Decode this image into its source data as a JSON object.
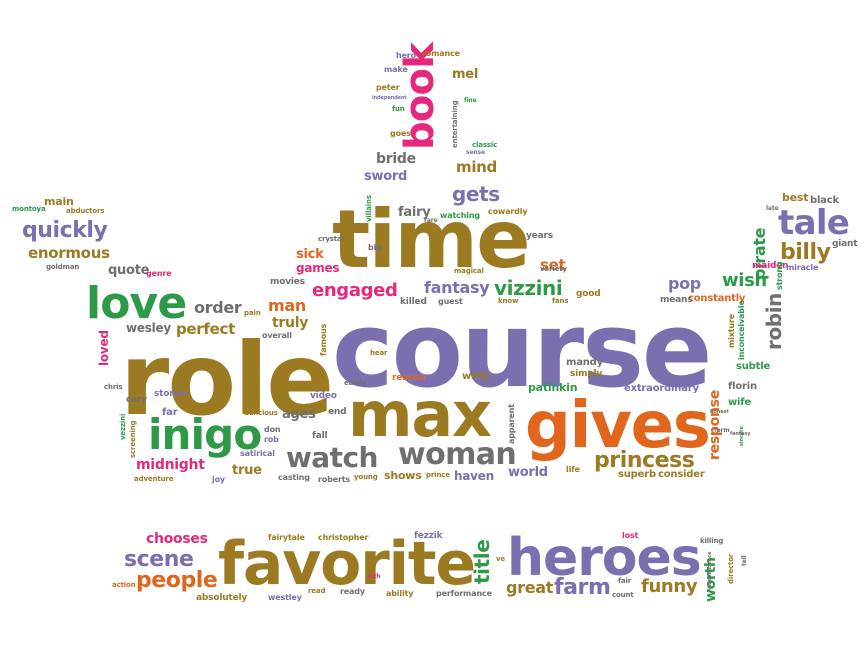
{
  "colors": {
    "green": "#2e9a48",
    "orange": "#e0661e",
    "purple": "#7b6fb0",
    "brown": "#9b7a22",
    "pink": "#e5287b",
    "gray": "#6f6f6f"
  },
  "words": [
    {
      "text": "course",
      "color": "purple"
    },
    {
      "text": "role",
      "color": "brown"
    },
    {
      "text": "time",
      "color": "brown"
    },
    {
      "text": "max",
      "color": "brown"
    },
    {
      "text": "gives",
      "color": "orange"
    },
    {
      "text": "favorite",
      "color": "brown"
    },
    {
      "text": "heroes",
      "color": "purple"
    },
    {
      "text": "book",
      "color": "pink"
    },
    {
      "text": "love",
      "color": "green"
    },
    {
      "text": "inigo",
      "color": "green"
    },
    {
      "text": "watch",
      "color": "gray"
    },
    {
      "text": "woman",
      "color": "gray"
    },
    {
      "text": "tale",
      "color": "purple"
    },
    {
      "text": "princess",
      "color": "brown"
    },
    {
      "text": "scene",
      "color": "purple"
    },
    {
      "text": "people",
      "color": "orange"
    },
    {
      "text": "farm",
      "color": "purple"
    },
    {
      "text": "great",
      "color": "brown"
    },
    {
      "text": "funny",
      "color": "brown"
    },
    {
      "text": "title",
      "color": "green"
    },
    {
      "text": "quickly",
      "color": "purple"
    },
    {
      "text": "enormous",
      "color": "brown"
    },
    {
      "text": "engaged",
      "color": "pink"
    },
    {
      "text": "fantasy",
      "color": "purple"
    },
    {
      "text": "vizzini",
      "color": "green"
    },
    {
      "text": "gets",
      "color": "purple"
    },
    {
      "text": "billy",
      "color": "brown"
    },
    {
      "text": "robin",
      "color": "gray"
    },
    {
      "text": "pirate",
      "color": "green"
    },
    {
      "text": "wish",
      "color": "green"
    },
    {
      "text": "pop",
      "color": "purple"
    },
    {
      "text": "man",
      "color": "orange"
    },
    {
      "text": "truly",
      "color": "brown"
    },
    {
      "text": "perfect",
      "color": "brown"
    },
    {
      "text": "order",
      "color": "gray"
    },
    {
      "text": "midnight",
      "color": "pink"
    },
    {
      "text": "chooses",
      "color": "pink"
    },
    {
      "text": "worth",
      "color": "green"
    },
    {
      "text": "response",
      "color": "orange"
    },
    {
      "text": "mind",
      "color": "brown"
    },
    {
      "text": "set",
      "color": "orange"
    },
    {
      "text": "bride",
      "color": "gray"
    },
    {
      "text": "sword",
      "color": "purple"
    },
    {
      "text": "fairy",
      "color": "gray"
    },
    {
      "text": "mel",
      "color": "brown"
    },
    {
      "text": "sick",
      "color": "orange"
    },
    {
      "text": "games",
      "color": "pink"
    },
    {
      "text": "loved",
      "color": "pink"
    },
    {
      "text": "wesley",
      "color": "gray"
    },
    {
      "text": "quote",
      "color": "gray"
    },
    {
      "text": "main",
      "color": "brown"
    },
    {
      "text": "ages",
      "color": "gray"
    },
    {
      "text": "true",
      "color": "brown"
    },
    {
      "text": "world",
      "color": "purple"
    },
    {
      "text": "haven",
      "color": "purple"
    },
    {
      "text": "shows",
      "color": "brown"
    },
    {
      "text": "patinkin",
      "color": "green"
    },
    {
      "text": "witty",
      "color": "brown"
    },
    {
      "text": "mandy",
      "color": "gray"
    },
    {
      "text": "simply",
      "color": "brown"
    },
    {
      "text": "extraordinary",
      "color": "purple"
    },
    {
      "text": "subtle",
      "color": "green"
    },
    {
      "text": "wife",
      "color": "green"
    },
    {
      "text": "florin",
      "color": "gray"
    },
    {
      "text": "superb",
      "color": "brown"
    },
    {
      "text": "consider",
      "color": "brown"
    },
    {
      "text": "constantly",
      "color": "orange"
    },
    {
      "text": "means",
      "color": "gray"
    },
    {
      "text": "good",
      "color": "brown"
    },
    {
      "text": "best",
      "color": "brown"
    },
    {
      "text": "black",
      "color": "gray"
    },
    {
      "text": "giant",
      "color": "gray"
    },
    {
      "text": "maiden",
      "color": "pink"
    },
    {
      "text": "miracle",
      "color": "purple"
    },
    {
      "text": "strong",
      "color": "green"
    },
    {
      "text": "mixture",
      "color": "brown"
    },
    {
      "text": "inconceivable",
      "color": "green"
    },
    {
      "text": "years",
      "color": "gray"
    },
    {
      "text": "variety",
      "color": "gray"
    },
    {
      "text": "magical",
      "color": "brown"
    },
    {
      "text": "know",
      "color": "brown"
    },
    {
      "text": "fans",
      "color": "brown"
    },
    {
      "text": "guest",
      "color": "gray"
    },
    {
      "text": "killed",
      "color": "gray"
    },
    {
      "text": "movies",
      "color": "gray"
    },
    {
      "text": "pain",
      "color": "brown"
    },
    {
      "text": "overall",
      "color": "gray"
    },
    {
      "text": "video",
      "color": "purple"
    },
    {
      "text": "famous",
      "color": "brown"
    },
    {
      "text": "hear",
      "color": "brown"
    },
    {
      "text": "easily",
      "color": "gray"
    },
    {
      "text": "reason",
      "color": "orange"
    },
    {
      "text": "apparent",
      "color": "gray"
    },
    {
      "text": "life",
      "color": "brown"
    },
    {
      "text": "stories",
      "color": "purple"
    },
    {
      "text": "cary",
      "color": "gray"
    },
    {
      "text": "chris",
      "color": "gray"
    },
    {
      "text": "far",
      "color": "purple"
    },
    {
      "text": "delicious",
      "color": "brown"
    },
    {
      "text": "don",
      "color": "gray"
    },
    {
      "text": "rob",
      "color": "purple"
    },
    {
      "text": "end",
      "color": "gray"
    },
    {
      "text": "fall",
      "color": "gray"
    },
    {
      "text": "satirical",
      "color": "purple"
    },
    {
      "text": "casting",
      "color": "gray"
    },
    {
      "text": "roberts",
      "color": "gray"
    },
    {
      "text": "young",
      "color": "brown"
    },
    {
      "text": "prince",
      "color": "brown"
    },
    {
      "text": "joy",
      "color": "purple"
    },
    {
      "text": "adventure",
      "color": "brown"
    },
    {
      "text": "screening",
      "color": "brown"
    },
    {
      "text": "vezzini",
      "color": "green"
    },
    {
      "text": "montoya",
      "color": "green"
    },
    {
      "text": "abductors",
      "color": "brown"
    },
    {
      "text": "goldman",
      "color": "gray"
    },
    {
      "text": "genre",
      "color": "pink"
    },
    {
      "text": "crystal",
      "color": "gray"
    },
    {
      "text": "big",
      "color": "gray"
    },
    {
      "text": "villains",
      "color": "green"
    },
    {
      "text": "rare",
      "color": "gray"
    },
    {
      "text": "watching",
      "color": "green"
    },
    {
      "text": "cowardly",
      "color": "brown"
    },
    {
      "text": "classic",
      "color": "green"
    },
    {
      "text": "sense",
      "color": "purple"
    },
    {
      "text": "entertaining",
      "color": "gray"
    },
    {
      "text": "fine",
      "color": "green"
    },
    {
      "text": "goes",
      "color": "brown"
    },
    {
      "text": "fun",
      "color": "green"
    },
    {
      "text": "peter",
      "color": "brown"
    },
    {
      "text": "make",
      "color": "purple"
    },
    {
      "text": "hero",
      "color": "purple"
    },
    {
      "text": "romance",
      "color": "brown"
    },
    {
      "text": "independent",
      "color": "purple"
    },
    {
      "text": "late",
      "color": "gray"
    },
    {
      "text": "fairytale",
      "color": "brown"
    },
    {
      "text": "christopher",
      "color": "brown"
    },
    {
      "text": "fezzik",
      "color": "purple"
    },
    {
      "text": "lost",
      "color": "pink"
    },
    {
      "text": "killing",
      "color": "gray"
    },
    {
      "text": "independence",
      "color": "gray"
    },
    {
      "text": "director",
      "color": "brown"
    },
    {
      "text": "tell",
      "color": "gray"
    },
    {
      "text": "absolutely",
      "color": "brown"
    },
    {
      "text": "westley",
      "color": "purple"
    },
    {
      "text": "read",
      "color": "brown"
    },
    {
      "text": "ready",
      "color": "gray"
    },
    {
      "text": "ability",
      "color": "brown"
    },
    {
      "text": "performance",
      "color": "gray"
    },
    {
      "text": "fair",
      "color": "gray"
    },
    {
      "text": "count",
      "color": "gray"
    },
    {
      "text": "action",
      "color": "orange"
    },
    {
      "text": "rich",
      "color": "pink"
    },
    {
      "text": "ve",
      "color": "brown"
    },
    {
      "text": "form",
      "color": "gray"
    },
    {
      "text": "sincere",
      "color": "green"
    },
    {
      "text": "fantasy",
      "color": "gray"
    },
    {
      "text": "honest",
      "color": "gray"
    }
  ]
}
